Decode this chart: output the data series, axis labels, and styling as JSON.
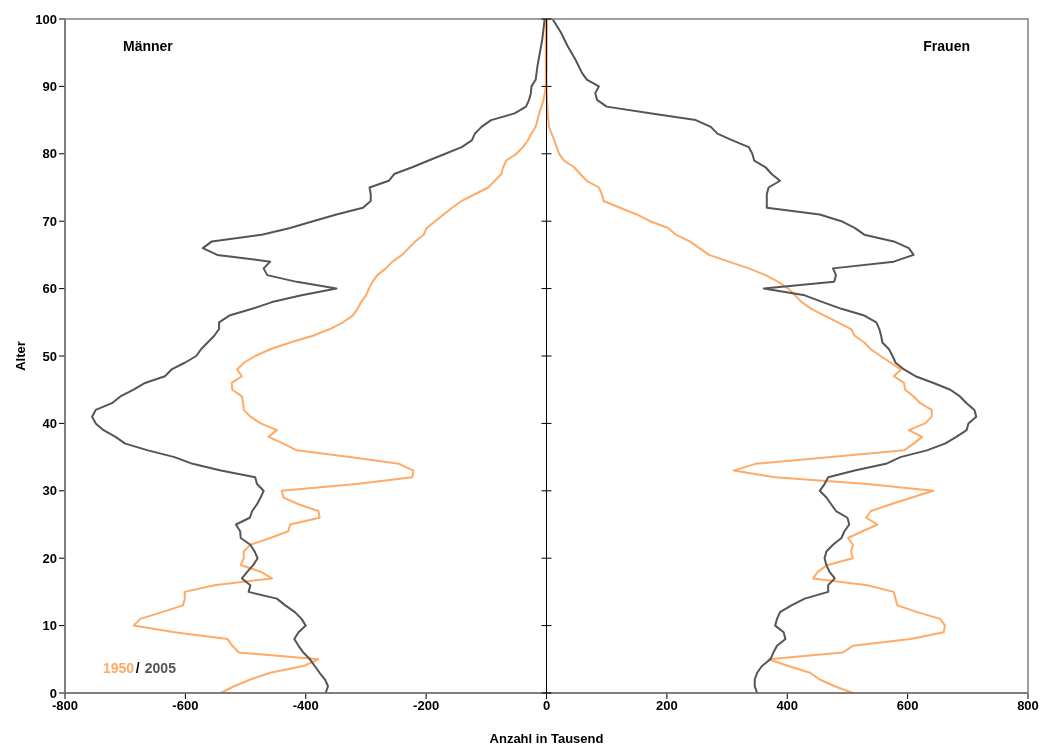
{
  "chart_data": {
    "type": "line",
    "xlabel": "Anzahl in Tausend",
    "ylabel": "Alter",
    "xlim": [
      -800,
      800
    ],
    "xticks": [
      -800,
      -600,
      -400,
      -200,
      0,
      200,
      400,
      600,
      800
    ],
    "ylim": [
      0,
      100
    ],
    "yticks": [
      0,
      10,
      20,
      30,
      40,
      50,
      60,
      70,
      80,
      90,
      100
    ],
    "legend": "bottom left",
    "marker": "none",
    "line_style": "solid",
    "annotations": [
      "Männer",
      "Frauen",
      "/"
    ],
    "series": [
      {
        "name": "1950",
        "color": "#ffaa66",
        "x": [
          -541,
          -519,
          -492,
          -459,
          -404,
          -379,
          -511,
          -522,
          -530,
          -618,
          -686,
          -675,
          -639,
          -604,
          -601,
          -601,
          -552,
          -456,
          -475,
          -508,
          -503,
          -503,
          -492,
          -459,
          -429,
          -426,
          -377,
          -379,
          -412,
          -437,
          -440,
          -316,
          -223,
          -221,
          -245,
          -327,
          -415,
          -437,
          -462,
          -448,
          -475,
          -492,
          -503,
          -504,
          -506,
          -522,
          -523,
          -506,
          -514,
          -503,
          -484,
          -459,
          -426,
          -388,
          -360,
          -338,
          -322,
          -314,
          -308,
          -300,
          -295,
          -289,
          -281,
          -267,
          -256,
          -240,
          -229,
          -218,
          -204,
          -199,
          -185,
          -171,
          -157,
          -141,
          -119,
          -97,
          -86,
          -75,
          -72,
          -67,
          -50,
          -39,
          -31,
          -25,
          -18,
          -12,
          -5,
          -1,
          -1
        ],
        "values": [
          0,
          1,
          2,
          3,
          4,
          5,
          6,
          7,
          8,
          9,
          10,
          11,
          12,
          13,
          14,
          15,
          16,
          17,
          18,
          19,
          20,
          21,
          22,
          23,
          24,
          25,
          26,
          27,
          28,
          29,
          30,
          31,
          32,
          33,
          34,
          35,
          36,
          37,
          38,
          39,
          40,
          41,
          42,
          43,
          44,
          45,
          46,
          47,
          48,
          49,
          50,
          51,
          52,
          53,
          54,
          55,
          56,
          57,
          58,
          59,
          60,
          61,
          62,
          63,
          64,
          65,
          66,
          67,
          68,
          69,
          70,
          71,
          72,
          73,
          74,
          75,
          76,
          77,
          78,
          79,
          80,
          81,
          82,
          83,
          84,
          86,
          88,
          90,
          100
        ]
      },
      {
        "name": "2005",
        "color": "#555555",
        "x": [
          -367,
          -363,
          -368,
          -377,
          -385,
          -393,
          -404,
          -412,
          -419,
          -412,
          -400,
          -407,
          -418,
          -434,
          -448,
          -495,
          -492,
          -506,
          -497,
          -487,
          -480,
          -485,
          -492,
          -508,
          -509,
          -516,
          -493,
          -489,
          -481,
          -475,
          -470,
          -481,
          -484,
          -541,
          -588,
          -618,
          -662,
          -700,
          -716,
          -736,
          -749,
          -755,
          -749,
          -722,
          -708,
          -686,
          -667,
          -634,
          -623,
          -601,
          -582,
          -574,
          -563,
          -552,
          -544,
          -544,
          -527,
          -489,
          -456,
          -407,
          -349,
          -415,
          -464,
          -470,
          -459,
          -547,
          -571,
          -556,
          -473,
          -426,
          -388,
          -349,
          -305,
          -292,
          -292,
          -294,
          -262,
          -253,
          -223,
          -196,
          -168,
          -141,
          -124,
          -119,
          -108,
          -92,
          -53,
          -34,
          -29,
          -26,
          -25,
          -18,
          -15,
          -11,
          -7,
          -3
        ],
        "values": [
          0,
          1,
          2,
          3,
          4,
          5,
          6,
          7,
          8,
          9,
          10,
          11,
          12,
          13,
          14,
          15,
          16,
          17,
          18,
          19,
          20,
          21,
          22,
          23,
          24,
          25,
          26,
          27,
          28,
          29,
          30,
          31,
          32,
          33,
          34,
          35,
          36,
          37,
          38,
          39,
          40,
          41,
          42,
          43,
          44,
          45,
          46,
          47,
          48,
          49,
          50,
          51,
          52,
          53,
          54,
          55,
          56,
          57,
          58,
          59,
          60,
          61,
          62,
          63,
          64,
          65,
          66,
          67,
          68,
          69,
          70,
          71,
          72,
          73,
          74,
          75,
          76,
          77,
          78,
          79,
          80,
          81,
          82,
          83,
          84,
          85,
          86,
          87,
          88,
          89,
          90,
          91,
          93,
          95,
          97,
          100
        ]
      },
      {
        "color": "#ffaa66",
        "x": [
          509,
          479,
          454,
          438,
          402,
          369,
          492,
          509,
          605,
          660,
          662,
          654,
          616,
          583,
          580,
          577,
          533,
          443,
          451,
          467,
          509,
          506,
          509,
          501,
          525,
          550,
          531,
          539,
          572,
          607,
          643,
          533,
          380,
          311,
          347,
          473,
          594,
          610,
          624,
          602,
          629,
          640,
          640,
          621,
          610,
          596,
          594,
          577,
          589,
          572,
          555,
          539,
          528,
          512,
          506,
          484,
          462,
          440,
          424,
          413,
          402,
          385,
          364,
          336,
          303,
          270,
          254,
          238,
          215,
          202,
          172,
          150,
          122,
          95,
          92,
          87,
          67,
          56,
          46,
          29,
          21,
          13,
          4,
          2,
          0,
          1
        ],
        "values": [
          0,
          1,
          2,
          3,
          4,
          5,
          6,
          7,
          8,
          9,
          10,
          11,
          12,
          13,
          14,
          15,
          16,
          17,
          18,
          19,
          20,
          21,
          22,
          23,
          24,
          25,
          26,
          27,
          28,
          29,
          30,
          31,
          32,
          33,
          34,
          35,
          36,
          37,
          38,
          39,
          40,
          41,
          42,
          43,
          44,
          45,
          46,
          47,
          48,
          49,
          50,
          51,
          52,
          53,
          54,
          55,
          56,
          57,
          58,
          59,
          60,
          61,
          62,
          63,
          64,
          65,
          66,
          67,
          68,
          69,
          70,
          71,
          72,
          73,
          74,
          75,
          76,
          77,
          78,
          79,
          80,
          82,
          84,
          86,
          90,
          100
        ]
      },
      {
        "color": "#555555",
        "x": [
          350,
          346,
          346,
          350,
          358,
          372,
          377,
          383,
          397,
          394,
          380,
          383,
          388,
          407,
          429,
          468,
          468,
          479,
          470,
          465,
          462,
          465,
          476,
          490,
          495,
          503,
          500,
          481,
          473,
          465,
          454,
          462,
          468,
          512,
          564,
          588,
          632,
          662,
          681,
          698,
          701,
          714,
          711,
          698,
          687,
          671,
          643,
          613,
          594,
          580,
          575,
          569,
          558,
          556,
          553,
          548,
          528,
          490,
          459,
          429,
          361,
          478,
          481,
          476,
          577,
          610,
          602,
          577,
          528,
          512,
          490,
          454,
          366,
          366,
          366,
          369,
          388,
          374,
          364,
          345,
          342,
          336,
          309,
          284,
          273,
          248,
          172,
          100,
          84,
          81,
          87,
          67,
          59,
          48,
          35,
          24,
          10
        ],
        "values": [
          0,
          1,
          2,
          3,
          4,
          5,
          6,
          7,
          8,
          9,
          10,
          11,
          12,
          13,
          14,
          15,
          16,
          17,
          18,
          19,
          20,
          21,
          22,
          23,
          24,
          25,
          26,
          27,
          28,
          29,
          30,
          31,
          32,
          33,
          34,
          35,
          36,
          37,
          38,
          39,
          40,
          41,
          42,
          43,
          44,
          45,
          46,
          47,
          48,
          49,
          50,
          51,
          52,
          53,
          54,
          55,
          56,
          57,
          58,
          59,
          60,
          61,
          62,
          63,
          64,
          65,
          66,
          67,
          68,
          69,
          70,
          71,
          72,
          73,
          74,
          75,
          76,
          77,
          78,
          79,
          80,
          81,
          82,
          83,
          84,
          85,
          86,
          87,
          88,
          89,
          90,
          91,
          92,
          94,
          96,
          98,
          100
        ]
      }
    ]
  }
}
